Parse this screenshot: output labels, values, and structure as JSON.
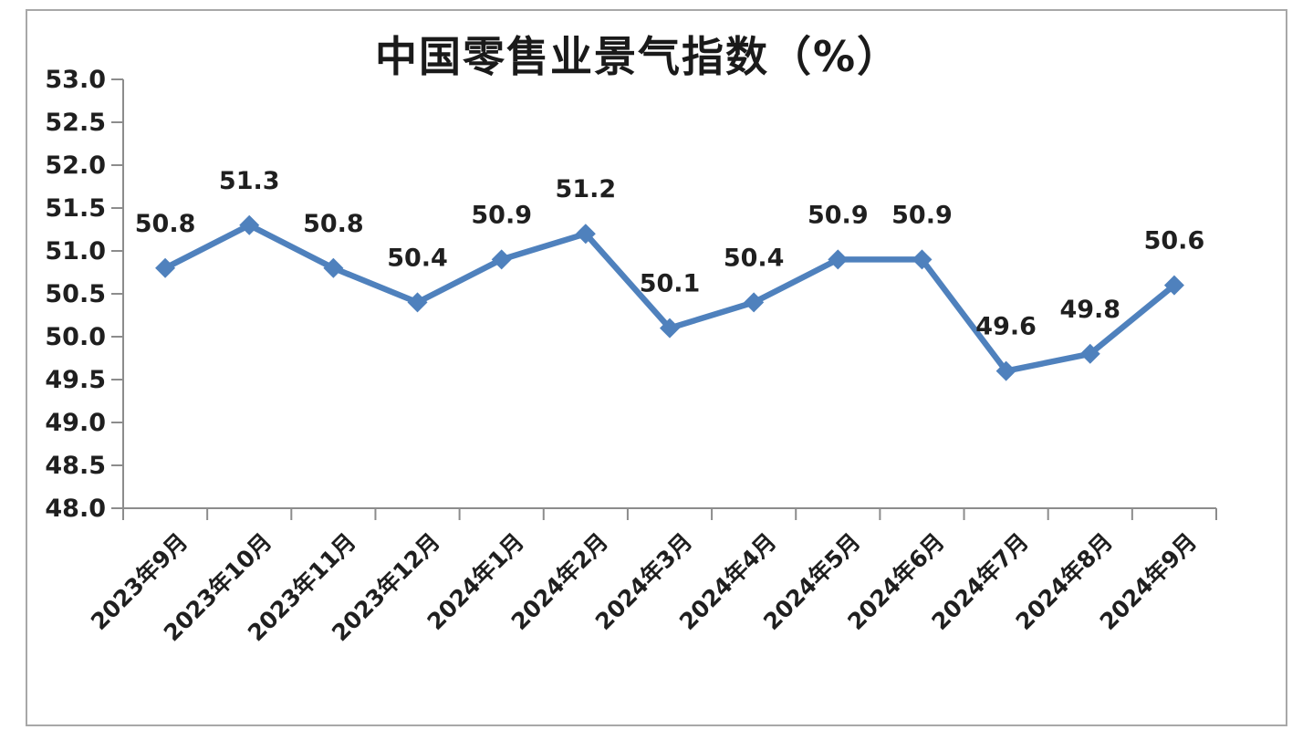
{
  "chart_data": {
    "type": "line",
    "title": "中国零售业景气指数（%）",
    "categories": [
      "2023年9月",
      "2023年10月",
      "2023年11月",
      "2023年12月",
      "2024年1月",
      "2024年2月",
      "2024年3月",
      "2024年4月",
      "2024年5月",
      "2024年6月",
      "2024年7月",
      "2024年8月",
      "2024年9月"
    ],
    "values": [
      50.8,
      51.3,
      50.8,
      50.4,
      50.9,
      51.2,
      50.1,
      50.4,
      50.9,
      50.9,
      49.6,
      49.8,
      50.6
    ],
    "data_labels": [
      "50.8",
      "51.3",
      "50.8",
      "50.4",
      "50.9",
      "51.2",
      "50.1",
      "50.4",
      "50.9",
      "50.9",
      "49.6",
      "49.8",
      "50.6"
    ],
    "xlabel": "",
    "ylabel": "",
    "ylim": [
      48.0,
      53.0
    ],
    "ytick_step": 0.5,
    "ytick_labels": [
      "53.0",
      "52.5",
      "52.0",
      "51.5",
      "51.0",
      "50.5",
      "50.0",
      "49.5",
      "49.0",
      "48.5",
      "48.0"
    ],
    "grid": false,
    "legend_position": "none",
    "marker": "diamond",
    "line_color": "#4f81bd",
    "axis_color": "#8c8c8c",
    "text_color": "#1f1f1f",
    "frame_color": "#a8a8a8",
    "background_color": "#ffffff"
  }
}
